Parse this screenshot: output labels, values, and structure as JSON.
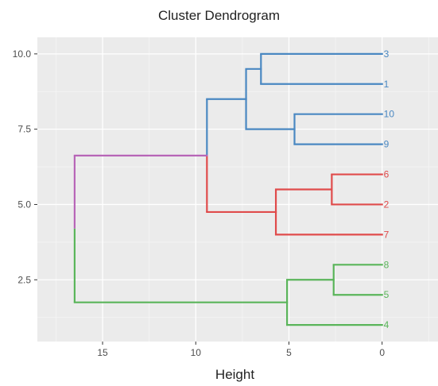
{
  "chart_data": {
    "type": "dendrogram",
    "title": "Cluster Dendrogram",
    "xlabel": "Height",
    "ylabel": "",
    "x_axis": {
      "reversed": true,
      "ticks": [
        15,
        10,
        5,
        0
      ],
      "tick_labels": [
        "15",
        "10",
        "5",
        "0"
      ],
      "range": [
        18.5,
        -3
      ]
    },
    "y_axis": {
      "ticks": [
        2.5,
        5.0,
        7.5,
        10.0
      ],
      "tick_labels": [
        "2.5",
        "5.0",
        "7.5",
        "10.0"
      ],
      "range": [
        0.45,
        10.55
      ]
    },
    "grid": true,
    "leaves": [
      {
        "label": "3",
        "y": 10,
        "color": "#4a88c2"
      },
      {
        "label": "1",
        "y": 9,
        "color": "#4a88c2"
      },
      {
        "label": "10",
        "y": 8,
        "color": "#4a88c2"
      },
      {
        "label": "9",
        "y": 7,
        "color": "#4a88c2"
      },
      {
        "label": "6",
        "y": 6,
        "color": "#e04b4b"
      },
      {
        "label": "2",
        "y": 5,
        "color": "#e04b4b"
      },
      {
        "label": "7",
        "y": 4,
        "color": "#e04b4b"
      },
      {
        "label": "8",
        "y": 3,
        "color": "#5ab55a"
      },
      {
        "label": "5",
        "y": 2,
        "color": "#5ab55a"
      },
      {
        "label": "4",
        "y": 1,
        "color": "#5ab55a"
      }
    ],
    "merges": [
      {
        "height": 6.5,
        "y_low": 9,
        "y_high": 10,
        "children_x": [
          0,
          0
        ],
        "color": "#4a88c2"
      },
      {
        "height": 4.7,
        "y_low": 7,
        "y_high": 8,
        "children_x": [
          0,
          0
        ],
        "color": "#4a88c2"
      },
      {
        "height": 7.3,
        "y_low": 7.5,
        "y_high": 9.5,
        "children_x": [
          4.7,
          6.5
        ],
        "color": "#4a88c2"
      },
      {
        "height": 2.7,
        "y_low": 5,
        "y_high": 6,
        "children_x": [
          0,
          0
        ],
        "color": "#e04b4b"
      },
      {
        "height": 5.7,
        "y_low": 4,
        "y_high": 5.5,
        "children_x": [
          0,
          2.7
        ],
        "color": "#e04b4b"
      },
      {
        "height": 9.4,
        "y_low": 4.75,
        "y_high": 8.5,
        "children_x": [
          5.7,
          7.3
        ],
        "color": "#e04b4b",
        "color_high": "#4a88c2"
      },
      {
        "height": 2.6,
        "y_low": 2,
        "y_high": 3,
        "children_x": [
          0,
          0
        ],
        "color": "#5ab55a"
      },
      {
        "height": 5.1,
        "y_low": 1,
        "y_high": 2.5,
        "children_x": [
          0,
          2.6
        ],
        "color": "#5ab55a"
      },
      {
        "height": 16.5,
        "y_low": 1.75,
        "y_high": 6.625,
        "children_x": [
          5.1,
          9.4
        ],
        "color": "#5ab55a",
        "color_high": "#b765b7",
        "color_split_y": 4.2
      }
    ],
    "colors": {
      "panel": "#ebebeb",
      "grid_major": "#ffffff",
      "grid_minor": "#f5f5f5",
      "cluster_1": "#4a88c2",
      "cluster_2": "#e04b4b",
      "cluster_3": "#5ab55a",
      "root": "#b765b7"
    }
  }
}
